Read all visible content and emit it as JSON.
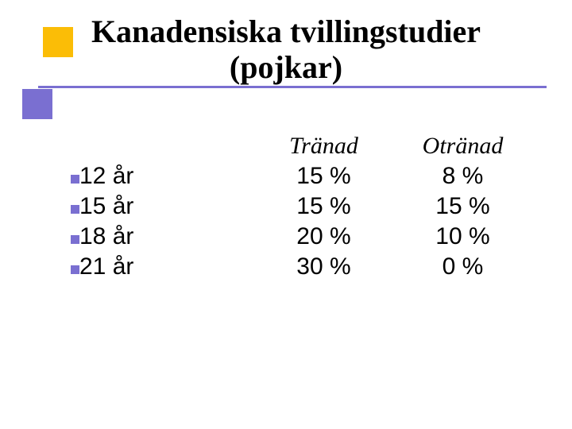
{
  "accent_purple": "#7a6fd1",
  "accent_yellow": "#fbbd06",
  "background_color": "#ffffff",
  "title": {
    "line1": "Kanadensiska tvillingstudier",
    "line2": "(pojkar)",
    "font_family": "Times New Roman",
    "font_size_pt": 40,
    "color": "#000000"
  },
  "table": {
    "type": "table",
    "header_font_style": "italic",
    "header_font_family": "Times New Roman",
    "body_font_family": "Verdana",
    "font_size_pt": 30,
    "bullet_color": "#7a6fd1",
    "columns": [
      {
        "label": "",
        "align": "left"
      },
      {
        "label": "Tränad",
        "align": "center"
      },
      {
        "label": "Otränad",
        "align": "center"
      }
    ],
    "rows": [
      {
        "label": "12 år",
        "trained": "15 %",
        "untrained": "8 %"
      },
      {
        "label": "15 år",
        "trained": "15 %",
        "untrained": "15 %"
      },
      {
        "label": "18 år",
        "trained": "20 %",
        "untrained": "10 %"
      },
      {
        "label": "21 år",
        "trained": "30 %",
        "untrained": "0 %"
      }
    ]
  }
}
